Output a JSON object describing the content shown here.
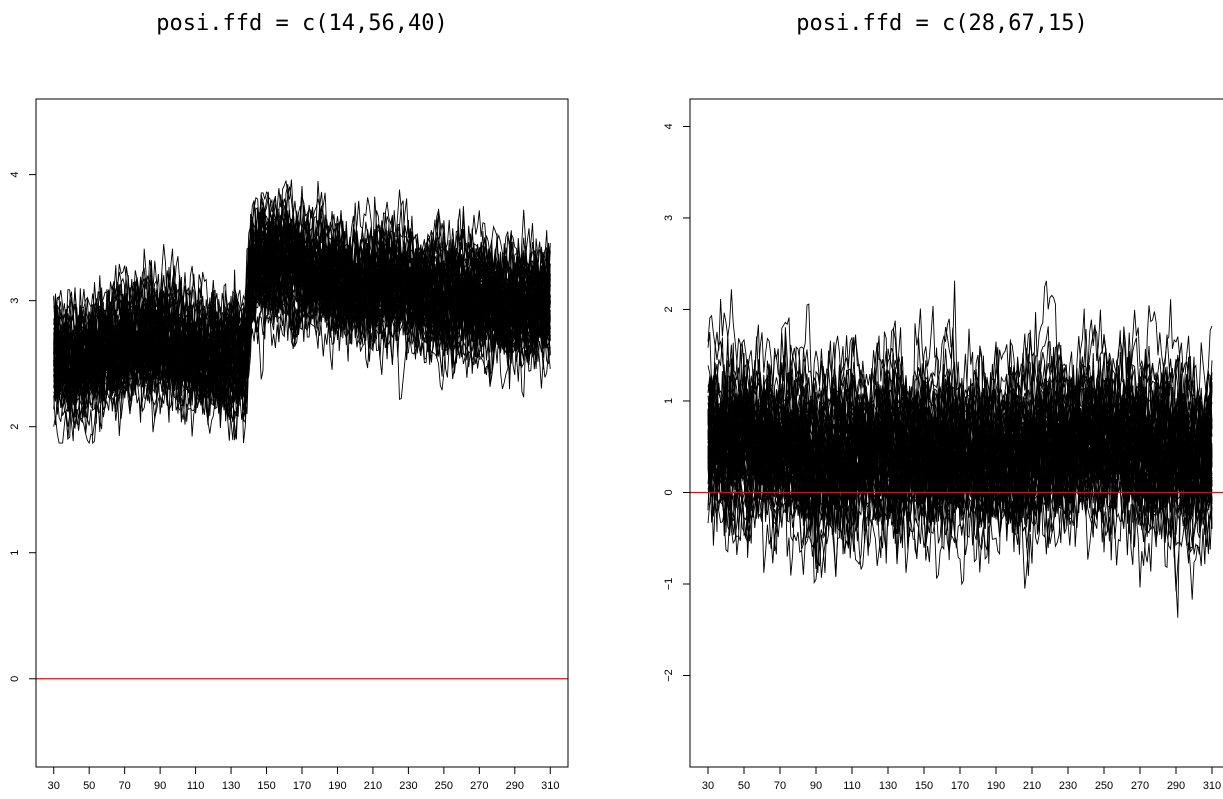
{
  "colors": {
    "curves": "#000000",
    "reference_line": "#ff0000",
    "background": "#ffffff"
  },
  "chart_data": [
    {
      "type": "line",
      "title": "posi.ffd = c(14,56,40)",
      "xlabel": "",
      "ylabel": "",
      "xlim": [
        20,
        320
      ],
      "ylim": [
        -0.7,
        4.6
      ],
      "x_ticks": [
        "30",
        "50",
        "70",
        "90",
        "110",
        "130",
        "150",
        "170",
        "190",
        "210",
        "230",
        "250",
        "270",
        "290",
        "310"
      ],
      "y_ticks": [
        "0",
        "1",
        "2",
        "3",
        "4"
      ],
      "x_range": [
        30,
        310
      ],
      "curve_count": 60,
      "series_profile": {
        "x": [
          30,
          40,
          60,
          80,
          100,
          120,
          138,
          142,
          160,
          180,
          200,
          220,
          240,
          260,
          280,
          300,
          310
        ],
        "mean": [
          2.6,
          2.55,
          2.65,
          2.75,
          2.7,
          2.6,
          2.62,
          3.3,
          3.35,
          3.25,
          3.15,
          3.2,
          3.05,
          3.1,
          3.0,
          3.0,
          3.05
        ],
        "spread": 0.25,
        "min": 1.87,
        "max": 4.07
      },
      "reference_line": {
        "y": 0,
        "color": "#ff0000"
      },
      "grid": false
    },
    {
      "type": "line",
      "title": "posi.ffd = c(28,67,15)",
      "xlabel": "",
      "ylabel": "",
      "xlim": [
        20,
        320
      ],
      "ylim": [
        -3.0,
        4.3
      ],
      "x_ticks": [
        "30",
        "50",
        "70",
        "90",
        "110",
        "130",
        "150",
        "170",
        "190",
        "210",
        "230",
        "250",
        "270",
        "290",
        "310"
      ],
      "y_ticks": [
        "−2",
        "−1",
        "0",
        "1",
        "2",
        "3",
        "4"
      ],
      "x_range": [
        30,
        310
      ],
      "curve_count": 60,
      "series_profile": {
        "x": [
          30,
          60,
          90,
          120,
          150,
          180,
          210,
          240,
          250,
          270,
          290,
          310
        ],
        "mean": [
          0.6,
          0.55,
          0.4,
          0.5,
          0.45,
          0.4,
          0.5,
          0.55,
          0.6,
          0.5,
          0.45,
          0.4
        ],
        "spread": 0.45,
        "min": -1.95,
        "max": 2.42
      },
      "reference_line": {
        "y": 0,
        "color": "#ff0000"
      },
      "grid": false
    }
  ]
}
